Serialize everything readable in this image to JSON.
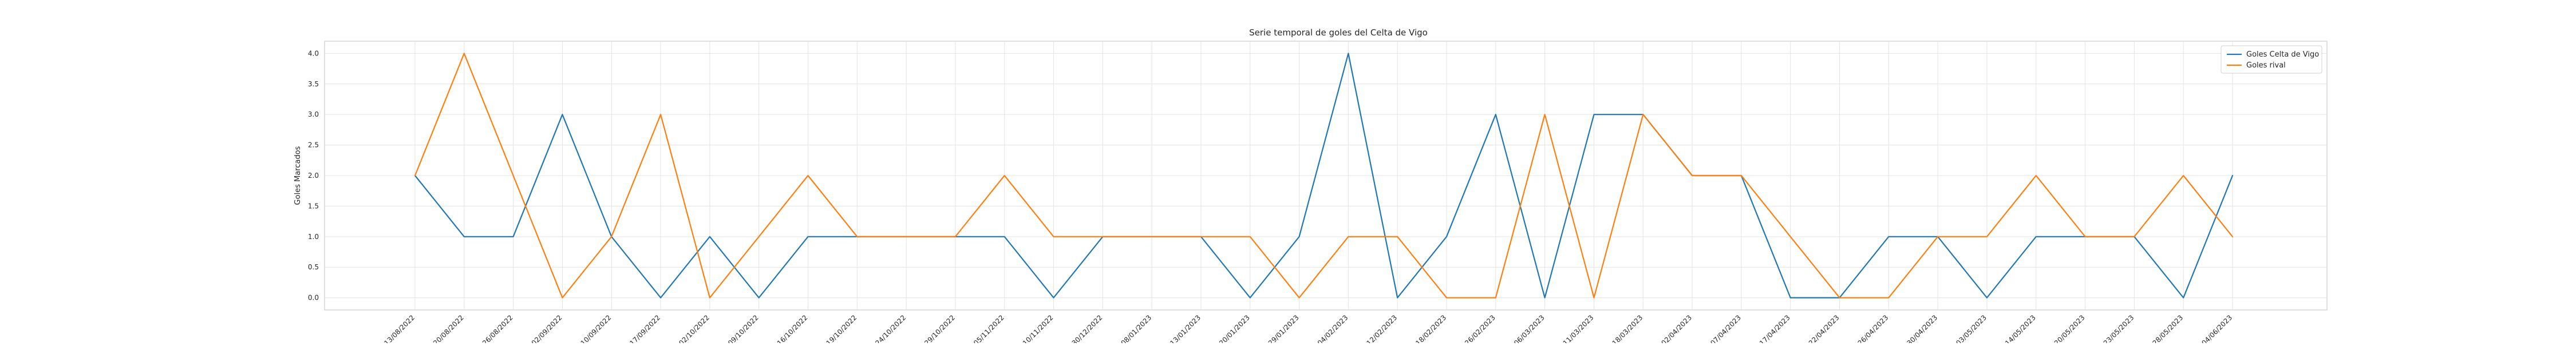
{
  "chart_data": {
    "type": "line",
    "title": "Serie temporal de goles del Celta de Vigo",
    "xlabel": "",
    "ylabel": "Goles Marcados",
    "ylim": [
      -0.2,
      4.2
    ],
    "yticks": [
      "0.0",
      "0.5",
      "1.0",
      "1.5",
      "2.0",
      "2.5",
      "3.0",
      "3.5",
      "4.0"
    ],
    "grid": true,
    "legend_position": "top-right",
    "categories": [
      "13/08/2022",
      "20/08/2022",
      "26/08/2022",
      "02/09/2022",
      "10/09/2022",
      "17/09/2022",
      "02/10/2022",
      "09/10/2022",
      "16/10/2022",
      "19/10/2022",
      "24/10/2022",
      "29/10/2022",
      "05/11/2022",
      "10/11/2022",
      "30/12/2022",
      "08/01/2023",
      "13/01/2023",
      "20/01/2023",
      "29/01/2023",
      "04/02/2023",
      "12/02/2023",
      "18/02/2023",
      "26/02/2023",
      "06/03/2023",
      "11/03/2023",
      "18/03/2023",
      "02/04/2023",
      "07/04/2023",
      "17/04/2023",
      "22/04/2023",
      "26/04/2023",
      "30/04/2023",
      "03/05/2023",
      "14/05/2023",
      "20/05/2023",
      "23/05/2023",
      "28/05/2023",
      "04/06/2023"
    ],
    "series": [
      {
        "name": "Goles Celta de Vigo",
        "color": "#1f77b4",
        "values": [
          2,
          1,
          1,
          3,
          1,
          0,
          1,
          0,
          1,
          1,
          1,
          1,
          1,
          0,
          1,
          1,
          1,
          0,
          1,
          4,
          0,
          1,
          3,
          0,
          3,
          3,
          2,
          2,
          0,
          0,
          1,
          1,
          0,
          1,
          1,
          1,
          0,
          2
        ]
      },
      {
        "name": "Goles rival",
        "color": "#ff7f0e",
        "values": [
          2,
          4,
          2,
          0,
          1,
          3,
          0,
          1,
          2,
          1,
          1,
          1,
          2,
          1,
          1,
          1,
          1,
          1,
          0,
          1,
          1,
          0,
          0,
          3,
          0,
          3,
          2,
          2,
          1,
          0,
          0,
          1,
          1,
          2,
          1,
          1,
          2,
          1
        ]
      }
    ]
  }
}
